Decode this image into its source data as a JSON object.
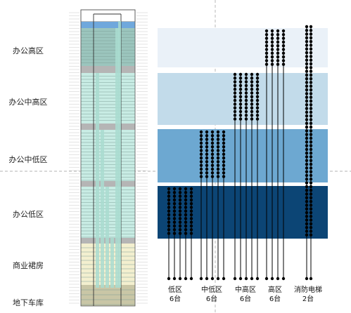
{
  "zones": [
    {
      "key": "high",
      "label": "办公高区",
      "band_color": "#eaf1f8"
    },
    {
      "key": "midhigh",
      "label": "办公中高区",
      "band_color": "#c2dbea"
    },
    {
      "key": "midlow",
      "label": "办公中低区",
      "band_color": "#6da8d1"
    },
    {
      "key": "low",
      "label": "办公低区",
      "band_color": "#0c4575"
    },
    {
      "key": "podium",
      "label": "商业裙房"
    },
    {
      "key": "basement",
      "label": "地下车库"
    }
  ],
  "elevator_groups": [
    {
      "name": "低区",
      "count_label": "6台",
      "serves": "low"
    },
    {
      "name": "中低区",
      "count_label": "6台",
      "serves": "midlow"
    },
    {
      "name": "中高区",
      "count_label": "6台",
      "serves": "midhigh"
    },
    {
      "name": "高区",
      "count_label": "6台",
      "serves": "high"
    },
    {
      "name": "消防电梯",
      "count_label": "2台",
      "serves": "all"
    }
  ],
  "colors": {
    "top_floor": "#6fa8dc",
    "office_floor": "#c8ece4",
    "office_high": "#9bc5bd",
    "refuge_floor": "#b5b5b5",
    "podium": "#f3efcf",
    "basement": "#c9c6a6",
    "shaft": "#a9dcd0",
    "guide": "#9a9a9a"
  }
}
